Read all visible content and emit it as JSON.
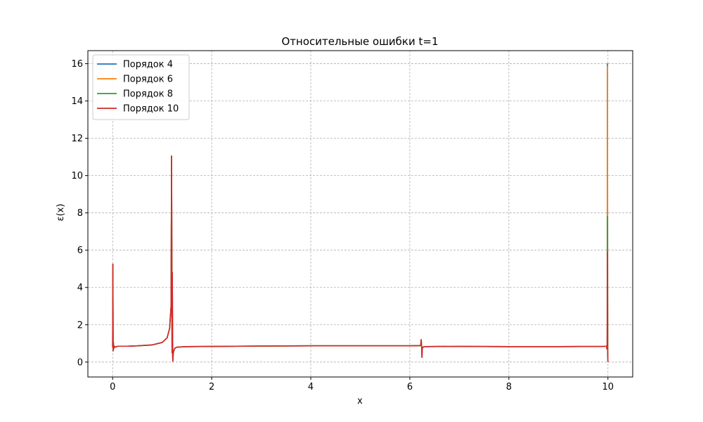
{
  "chart_data": {
    "type": "line",
    "title": "Относительные ошибки t=1",
    "xlabel": "x",
    "ylabel": "ε(x)",
    "xlim": [
      -0.5,
      10.5
    ],
    "ylim": [
      -0.8,
      16.7
    ],
    "xticks": [
      0,
      2,
      4,
      6,
      8,
      10
    ],
    "yticks": [
      0,
      2,
      4,
      6,
      8,
      10,
      12,
      14,
      16
    ],
    "grid": true,
    "legend_position": "top-left",
    "series": [
      {
        "name": "Порядок 4",
        "color": "#1f77b4",
        "x": [
          0.0,
          0.005,
          0.01,
          0.015,
          0.02,
          0.03,
          0.05,
          0.1,
          0.3,
          0.5,
          0.8,
          1.0,
          1.1,
          1.15,
          1.18,
          1.19,
          1.2,
          1.205,
          1.21,
          1.215,
          1.22,
          1.225,
          1.23,
          1.24,
          1.26,
          1.3,
          1.5,
          2.0,
          3.0,
          4.0,
          5.0,
          6.0,
          6.2,
          6.22,
          6.23,
          6.24,
          6.245,
          6.25,
          6.26,
          6.3,
          7.0,
          8.0,
          9.0,
          9.9,
          9.95,
          9.97,
          9.98,
          9.985,
          9.99,
          9.995,
          10.0
        ],
        "y": [
          0.8,
          5.25,
          0.6,
          1.05,
          0.7,
          0.85,
          0.8,
          0.85,
          0.85,
          0.87,
          0.92,
          1.05,
          1.3,
          1.8,
          3.0,
          11.05,
          0.5,
          4.8,
          0.6,
          0.05,
          0.3,
          0.5,
          0.55,
          0.65,
          0.75,
          0.8,
          0.83,
          0.84,
          0.86,
          0.87,
          0.87,
          0.87,
          0.88,
          0.9,
          1.2,
          0.7,
          0.25,
          0.7,
          0.8,
          0.83,
          0.84,
          0.83,
          0.83,
          0.84,
          0.85,
          0.85,
          0.7,
          0.95,
          16.0,
          0.6,
          0.0
        ]
      },
      {
        "name": "Порядок 6",
        "color": "#ff7f0e",
        "x": [
          0.0,
          0.005,
          0.01,
          0.015,
          0.02,
          0.03,
          0.05,
          0.1,
          0.3,
          0.5,
          0.8,
          1.0,
          1.1,
          1.15,
          1.18,
          1.19,
          1.2,
          1.205,
          1.21,
          1.215,
          1.22,
          1.225,
          1.23,
          1.24,
          1.26,
          1.3,
          1.5,
          2.0,
          3.0,
          4.0,
          5.0,
          6.0,
          6.2,
          6.22,
          6.23,
          6.24,
          6.245,
          6.25,
          6.26,
          6.3,
          7.0,
          8.0,
          9.0,
          9.9,
          9.95,
          9.97,
          9.98,
          9.985,
          9.99,
          9.995,
          10.0
        ],
        "y": [
          0.8,
          5.25,
          0.6,
          1.05,
          0.7,
          0.85,
          0.8,
          0.85,
          0.85,
          0.87,
          0.92,
          1.05,
          1.3,
          1.8,
          3.0,
          11.05,
          0.5,
          4.8,
          0.6,
          0.05,
          0.3,
          0.5,
          0.55,
          0.65,
          0.75,
          0.8,
          0.83,
          0.84,
          0.86,
          0.87,
          0.87,
          0.87,
          0.88,
          0.9,
          1.2,
          0.7,
          0.25,
          0.7,
          0.8,
          0.83,
          0.84,
          0.83,
          0.83,
          0.84,
          0.85,
          0.85,
          0.7,
          0.95,
          15.85,
          0.6,
          0.0
        ]
      },
      {
        "name": "Порядок 8",
        "color": "#2ca02c",
        "x": [
          0.0,
          0.005,
          0.01,
          0.015,
          0.02,
          0.03,
          0.05,
          0.1,
          0.3,
          0.5,
          0.8,
          1.0,
          1.1,
          1.15,
          1.18,
          1.19,
          1.2,
          1.205,
          1.21,
          1.215,
          1.22,
          1.225,
          1.23,
          1.24,
          1.26,
          1.3,
          1.5,
          2.0,
          3.0,
          4.0,
          5.0,
          6.0,
          6.2,
          6.22,
          6.23,
          6.24,
          6.245,
          6.25,
          6.26,
          6.3,
          7.0,
          8.0,
          9.0,
          9.9,
          9.95,
          9.97,
          9.98,
          9.985,
          9.99,
          9.995,
          10.0
        ],
        "y": [
          0.8,
          5.25,
          0.6,
          1.05,
          0.7,
          0.85,
          0.8,
          0.85,
          0.85,
          0.87,
          0.92,
          1.05,
          1.3,
          1.8,
          3.0,
          11.05,
          0.5,
          4.8,
          0.6,
          0.05,
          0.3,
          0.5,
          0.55,
          0.65,
          0.75,
          0.8,
          0.83,
          0.84,
          0.86,
          0.87,
          0.87,
          0.87,
          0.88,
          0.9,
          1.2,
          0.7,
          0.25,
          0.7,
          0.8,
          0.83,
          0.84,
          0.83,
          0.83,
          0.84,
          0.85,
          0.85,
          0.7,
          0.95,
          7.8,
          0.6,
          0.0
        ]
      },
      {
        "name": "Порядок 10",
        "color": "#d62728",
        "x": [
          0.0,
          0.005,
          0.01,
          0.015,
          0.02,
          0.03,
          0.05,
          0.1,
          0.3,
          0.5,
          0.8,
          1.0,
          1.1,
          1.15,
          1.18,
          1.19,
          1.2,
          1.205,
          1.21,
          1.215,
          1.22,
          1.225,
          1.23,
          1.24,
          1.26,
          1.3,
          1.5,
          2.0,
          3.0,
          4.0,
          5.0,
          6.0,
          6.2,
          6.22,
          6.23,
          6.24,
          6.245,
          6.25,
          6.26,
          6.3,
          7.0,
          8.0,
          9.0,
          9.9,
          9.95,
          9.97,
          9.98,
          9.985,
          9.99,
          9.995,
          10.0
        ],
        "y": [
          0.8,
          5.25,
          0.6,
          1.05,
          0.7,
          0.85,
          0.8,
          0.85,
          0.85,
          0.87,
          0.92,
          1.05,
          1.3,
          1.8,
          3.0,
          11.05,
          0.5,
          4.8,
          0.6,
          0.05,
          0.3,
          0.5,
          0.55,
          0.65,
          0.75,
          0.8,
          0.83,
          0.84,
          0.86,
          0.87,
          0.87,
          0.87,
          0.88,
          0.9,
          1.2,
          0.7,
          0.25,
          0.7,
          0.8,
          0.83,
          0.84,
          0.83,
          0.83,
          0.84,
          0.85,
          0.85,
          0.7,
          0.95,
          5.9,
          0.6,
          0.0
        ]
      }
    ]
  }
}
